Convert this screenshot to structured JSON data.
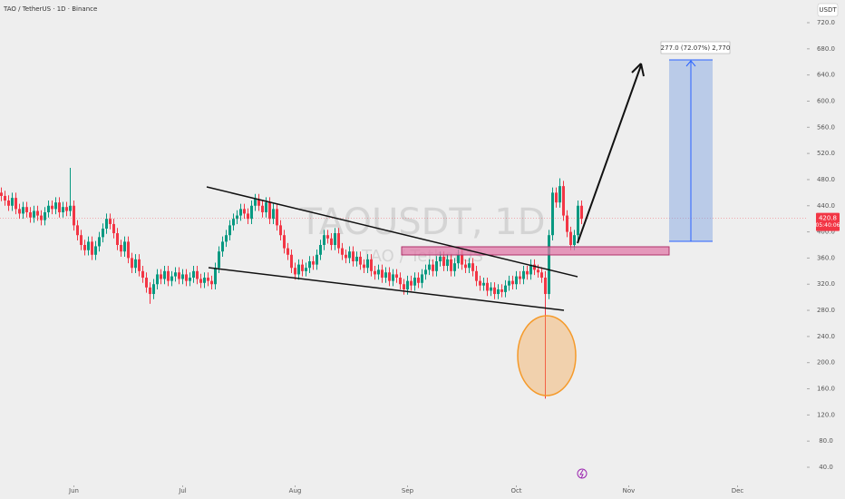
{
  "header": "TAO / TetherUS · 1D · Binance",
  "currency": "USDT",
  "watermark": "TAOUSDT, 1D",
  "watermark_sub": "TAO / TetherUS",
  "countdown": "05:40:06",
  "measure_label": "277.0 (72.07%) 2,770",
  "chart_data": {
    "type": "candlestick",
    "up_color": "#089981",
    "down_color": "#f23645",
    "xlim": [
      0,
      222
    ],
    "xticks": [
      {
        "value": 20,
        "label": "Jun"
      },
      {
        "value": 50,
        "label": "Jul"
      },
      {
        "value": 81,
        "label": "Aug"
      },
      {
        "value": 112,
        "label": "Sep"
      },
      {
        "value": 142,
        "label": "Oct"
      },
      {
        "value": 173,
        "label": "Nov"
      },
      {
        "value": 203,
        "label": "Dec"
      }
    ],
    "ylim": [
      40,
      720
    ],
    "yticks": [
      {
        "value": 720,
        "label": "720.0"
      },
      {
        "value": 680,
        "label": "680.0"
      },
      {
        "value": 640,
        "label": "640.0"
      },
      {
        "value": 600,
        "label": "600.0"
      },
      {
        "value": 560,
        "label": "560.0"
      },
      {
        "value": 520,
        "label": "520.0"
      },
      {
        "value": 480,
        "label": "480.0"
      },
      {
        "value": 440,
        "label": "440.0"
      },
      {
        "value": 400,
        "label": "400.0"
      },
      {
        "value": 360,
        "label": "360.0"
      },
      {
        "value": 320,
        "label": "320.0"
      },
      {
        "value": 280,
        "label": "280.0"
      },
      {
        "value": 240,
        "label": "240.0"
      },
      {
        "value": 200,
        "label": "200.0"
      },
      {
        "value": 160,
        "label": "160.0"
      },
      {
        "value": 120,
        "label": "120.0"
      },
      {
        "value": 80,
        "label": "80.0"
      },
      {
        "value": 40,
        "label": "40.0"
      }
    ],
    "last_price": 420.8,
    "open": [
      460,
      455,
      448,
      440,
      452,
      435,
      428,
      438,
      430,
      422,
      432,
      425,
      418,
      430,
      440,
      435,
      445,
      430,
      438,
      432,
      440,
      410,
      395,
      380,
      372,
      385,
      365,
      378,
      392,
      405,
      420,
      412,
      398,
      380,
      370,
      385,
      360,
      345,
      358,
      340,
      330,
      315,
      305,
      320,
      335,
      328,
      340,
      325,
      332,
      338,
      328,
      335,
      325,
      330,
      340,
      328,
      322,
      330,
      325,
      320,
      345,
      370,
      385,
      395,
      410,
      420,
      425,
      435,
      428,
      420,
      440,
      450,
      440,
      430,
      445,
      420,
      435,
      410,
      395,
      375,
      365,
      345,
      335,
      350,
      340,
      345,
      355,
      350,
      365,
      380,
      395,
      390,
      380,
      398,
      375,
      365,
      360,
      370,
      355,
      362,
      350,
      345,
      358,
      340,
      335,
      342,
      330,
      338,
      325,
      335,
      330,
      320,
      312,
      325,
      318,
      330,
      322,
      335,
      342,
      350,
      340,
      355,
      362,
      348,
      358,
      340,
      352,
      365,
      350,
      345,
      352,
      340,
      325,
      318,
      322,
      310,
      315,
      305,
      312,
      308,
      318,
      325,
      320,
      332,
      328,
      340,
      335,
      350,
      342,
      338,
      330,
      305,
      395,
      460,
      445,
      470,
      425,
      400,
      380,
      395,
      440
    ],
    "high": [
      468,
      463,
      456,
      460,
      460,
      443,
      446,
      446,
      438,
      440,
      440,
      433,
      438,
      448,
      448,
      453,
      453,
      446,
      446,
      498,
      448,
      418,
      403,
      388,
      393,
      393,
      386,
      400,
      413,
      428,
      428,
      420,
      406,
      388,
      393,
      393,
      368,
      366,
      366,
      348,
      338,
      323,
      328,
      343,
      343,
      348,
      348,
      340,
      346,
      346,
      343,
      343,
      338,
      348,
      348,
      336,
      338,
      338,
      333,
      353,
      378,
      393,
      403,
      418,
      428,
      433,
      443,
      443,
      436,
      448,
      458,
      458,
      448,
      453,
      453,
      443,
      443,
      418,
      403,
      383,
      373,
      353,
      358,
      358,
      353,
      363,
      363,
      373,
      388,
      403,
      403,
      398,
      406,
      406,
      383,
      373,
      378,
      378,
      370,
      370,
      358,
      366,
      366,
      348,
      350,
      350,
      346,
      346,
      343,
      343,
      338,
      328,
      333,
      333,
      338,
      338,
      343,
      350,
      358,
      358,
      363,
      370,
      370,
      366,
      366,
      360,
      373,
      373,
      358,
      360,
      360,
      348,
      333,
      330,
      330,
      323,
      323,
      320,
      320,
      326,
      333,
      333,
      340,
      340,
      348,
      348,
      358,
      358,
      350,
      346,
      340,
      403,
      468,
      468,
      482,
      478,
      433,
      408,
      403,
      448,
      448
    ],
    "low": [
      447,
      440,
      432,
      432,
      427,
      420,
      420,
      422,
      414,
      414,
      417,
      410,
      410,
      422,
      427,
      427,
      422,
      422,
      424,
      424,
      402,
      387,
      372,
      364,
      364,
      357,
      357,
      370,
      384,
      397,
      404,
      390,
      372,
      362,
      362,
      352,
      337,
      337,
      332,
      322,
      307,
      290,
      297,
      312,
      320,
      320,
      317,
      317,
      324,
      320,
      320,
      317,
      317,
      322,
      320,
      314,
      314,
      317,
      312,
      312,
      337,
      362,
      377,
      387,
      402,
      412,
      417,
      420,
      412,
      412,
      432,
      432,
      422,
      422,
      412,
      412,
      402,
      387,
      367,
      357,
      337,
      327,
      327,
      332,
      332,
      337,
      342,
      342,
      357,
      372,
      382,
      372,
      372,
      367,
      357,
      352,
      352,
      347,
      347,
      342,
      337,
      337,
      332,
      327,
      327,
      322,
      322,
      317,
      317,
      322,
      312,
      304,
      304,
      310,
      310,
      314,
      314,
      327,
      334,
      332,
      332,
      347,
      340,
      340,
      332,
      332,
      344,
      342,
      337,
      337,
      332,
      317,
      310,
      310,
      302,
      302,
      297,
      297,
      300,
      300,
      310,
      312,
      312,
      320,
      320,
      327,
      327,
      334,
      330,
      322,
      145,
      297,
      387,
      437,
      437,
      417,
      392,
      372,
      372,
      387,
      412
    ],
    "close": [
      455,
      448,
      440,
      452,
      435,
      428,
      438,
      430,
      422,
      432,
      425,
      418,
      430,
      440,
      435,
      445,
      430,
      438,
      432,
      440,
      410,
      395,
      380,
      372,
      385,
      365,
      378,
      392,
      405,
      420,
      412,
      398,
      380,
      370,
      385,
      360,
      345,
      358,
      340,
      330,
      315,
      305,
      320,
      335,
      328,
      340,
      325,
      332,
      338,
      328,
      335,
      325,
      330,
      340,
      328,
      322,
      330,
      325,
      320,
      345,
      370,
      385,
      395,
      410,
      420,
      425,
      435,
      428,
      420,
      440,
      450,
      440,
      430,
      445,
      420,
      435,
      410,
      395,
      375,
      365,
      345,
      335,
      350,
      340,
      345,
      355,
      350,
      365,
      380,
      395,
      390,
      380,
      398,
      375,
      365,
      360,
      370,
      355,
      362,
      350,
      345,
      358,
      340,
      335,
      342,
      330,
      338,
      325,
      335,
      330,
      320,
      312,
      325,
      318,
      330,
      322,
      335,
      342,
      350,
      340,
      355,
      362,
      348,
      358,
      340,
      352,
      365,
      350,
      345,
      352,
      340,
      325,
      318,
      322,
      310,
      315,
      305,
      312,
      308,
      318,
      325,
      320,
      332,
      328,
      340,
      335,
      350,
      342,
      338,
      330,
      305,
      395,
      460,
      445,
      470,
      425,
      400,
      380,
      395,
      440,
      420
    ]
  }
}
